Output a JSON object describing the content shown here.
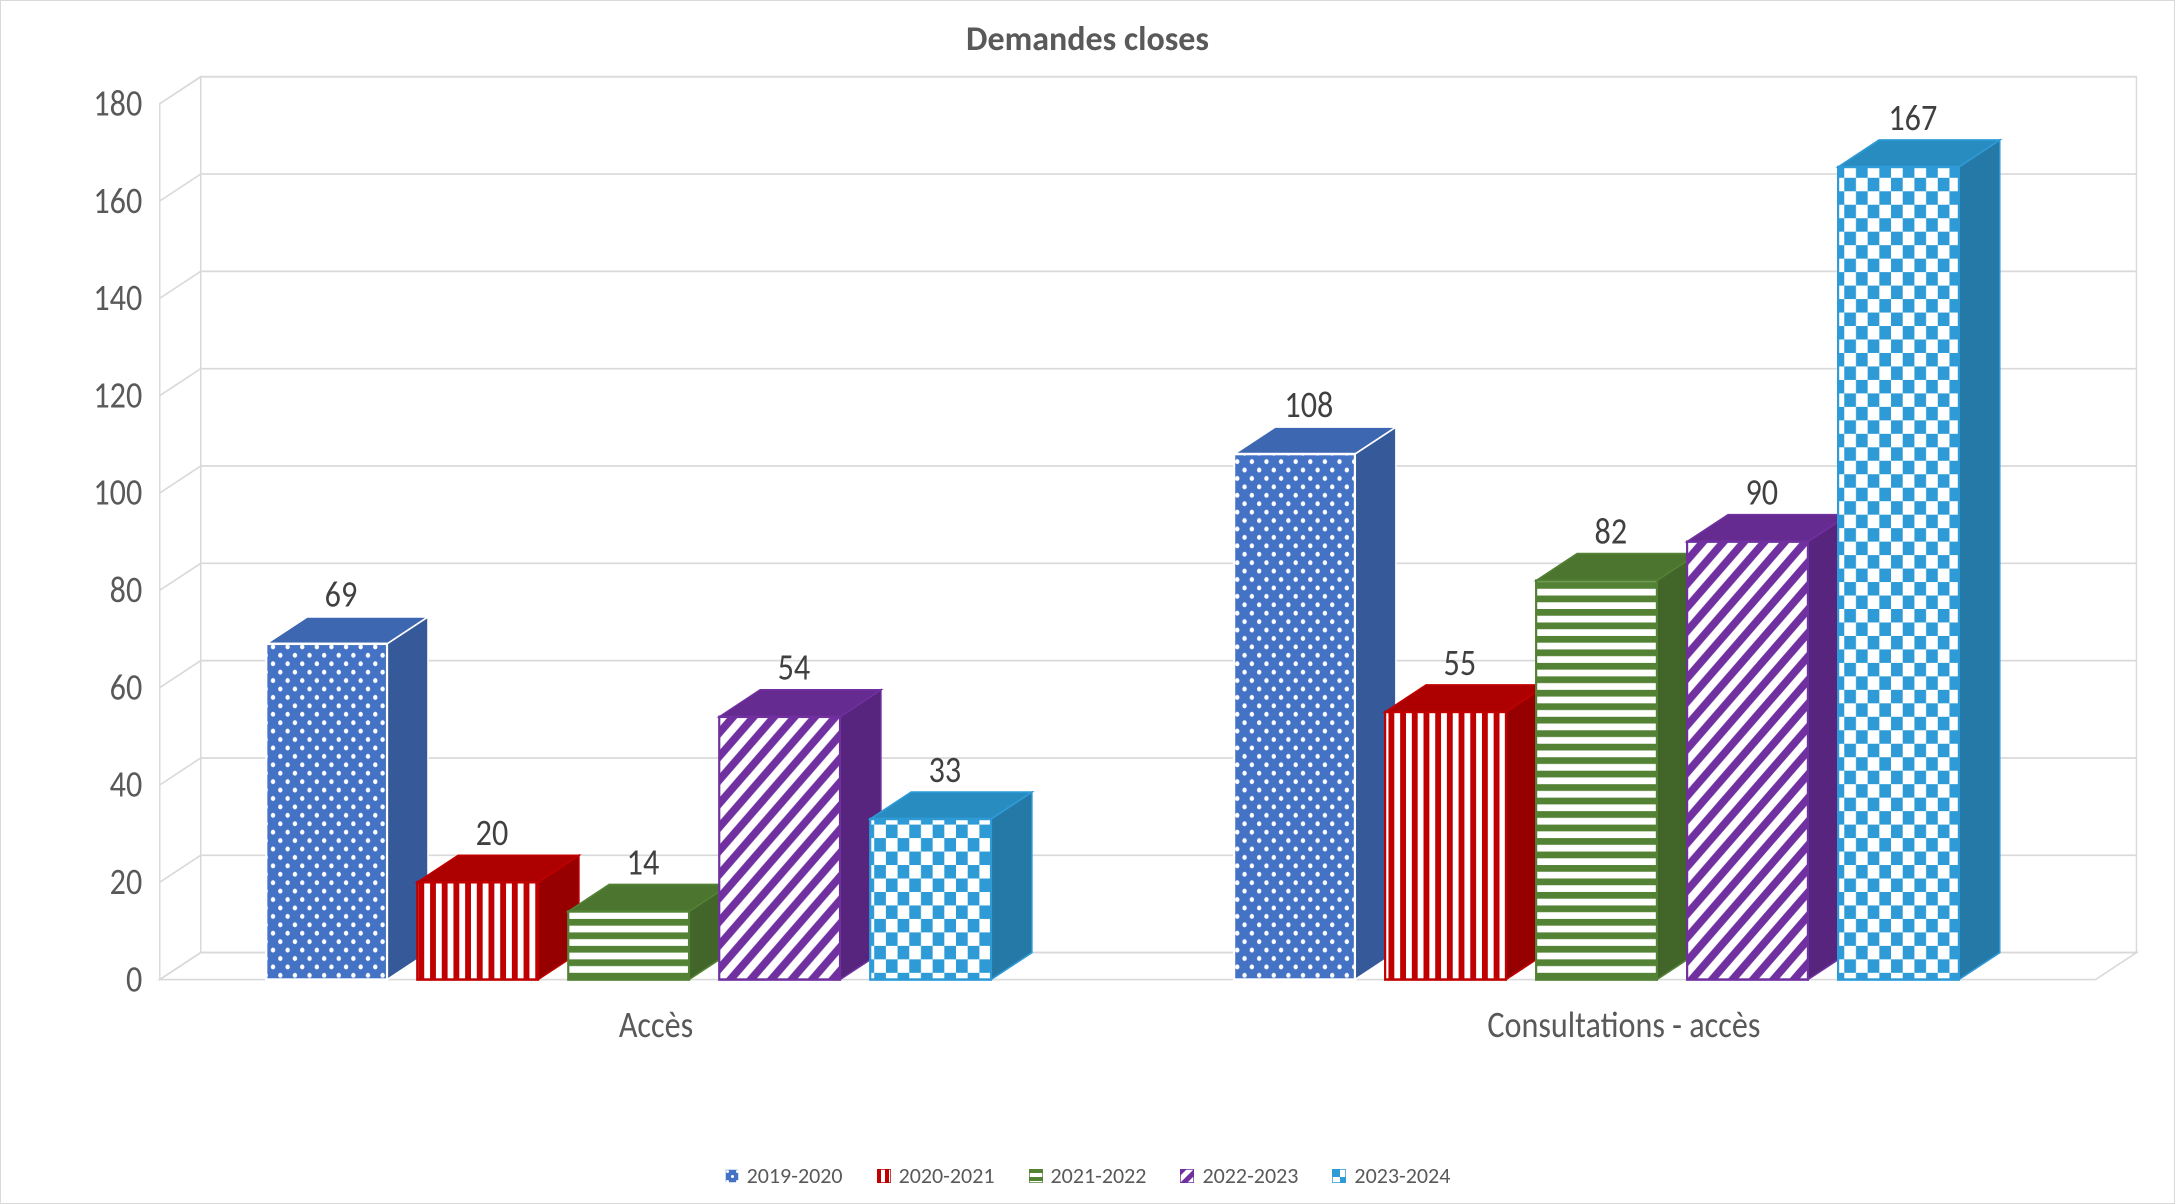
{
  "chart": {
    "type": "bar-3d-grouped",
    "title": "Demandes closes",
    "title_fontsize": 34,
    "title_color": "#595959",
    "axis_label_color": "#595959",
    "axis_label_fontsize": 22,
    "tick_fontsize": 22,
    "value_label_fontsize": 22,
    "value_label_color": "#404040",
    "background_color": "#ffffff",
    "grid_color": "#d9d9d9",
    "side_wall_color": "#ffffff",
    "floor_color": "#ffffff",
    "y": {
      "min": 0,
      "max": 180,
      "step": 20
    },
    "categories": [
      "Accès",
      "Consultations - accès"
    ],
    "series": [
      {
        "name": "2019-2020",
        "pattern": "dots-blue",
        "fill": "#4472c4",
        "accent": "#ffffff",
        "values": [
          69,
          108
        ]
      },
      {
        "name": "2020-2021",
        "pattern": "vstripe-red",
        "fill": "#ffffff",
        "accent": "#c00000",
        "values": [
          20,
          55
        ]
      },
      {
        "name": "2021-2022",
        "pattern": "hstripe-green",
        "fill": "#ffffff",
        "accent": "#548235",
        "values": [
          14,
          82
        ]
      },
      {
        "name": "2022-2023",
        "pattern": "diag-purple",
        "fill": "#ffffff",
        "accent": "#7030a0",
        "values": [
          54,
          90
        ]
      },
      {
        "name": "2023-2024",
        "pattern": "check-cyan",
        "fill": "#ffffff",
        "accent": "#2e9bd6",
        "values": [
          33,
          167
        ]
      }
    ],
    "bar_width": 0.8,
    "depth_dx": 28,
    "depth_dy": -16,
    "legend_position": "bottom"
  }
}
